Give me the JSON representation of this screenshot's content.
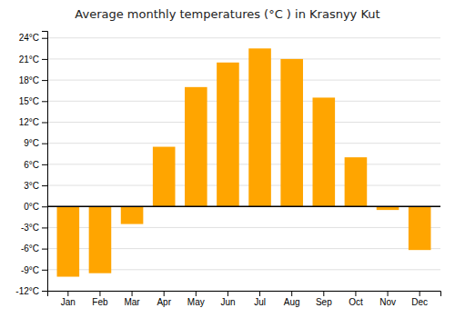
{
  "chart_data": {
    "type": "bar",
    "title": "Average monthly temperatures (°C ) in Krasnyy Kut",
    "categories": [
      "Jan",
      "Feb",
      "Mar",
      "Apr",
      "May",
      "Jun",
      "Jul",
      "Aug",
      "Sep",
      "Oct",
      "Nov",
      "Dec"
    ],
    "values": [
      -10,
      -9.5,
      -2.5,
      8.5,
      17,
      20.5,
      22.5,
      21,
      15.5,
      7,
      -0.5,
      -6.2
    ],
    "color": "#FFA500",
    "ylim": [
      -12,
      25
    ],
    "yticks": [
      {
        "value": -12,
        "label": "-12°C"
      },
      {
        "value": -9,
        "label": "-9°C"
      },
      {
        "value": -6,
        "label": "-6°C"
      },
      {
        "value": -3,
        "label": "-3°C"
      },
      {
        "value": 0,
        "label": "0°C"
      },
      {
        "value": 3,
        "label": "3°C"
      },
      {
        "value": 6,
        "label": "6°C"
      },
      {
        "value": 9,
        "label": "9°C"
      },
      {
        "value": 12,
        "label": "12°C"
      },
      {
        "value": 15,
        "label": "15°C"
      },
      {
        "value": 18,
        "label": "18°C"
      },
      {
        "value": 21,
        "label": "21°C"
      },
      {
        "value": 24,
        "label": "24°C"
      }
    ],
    "grid": true
  }
}
